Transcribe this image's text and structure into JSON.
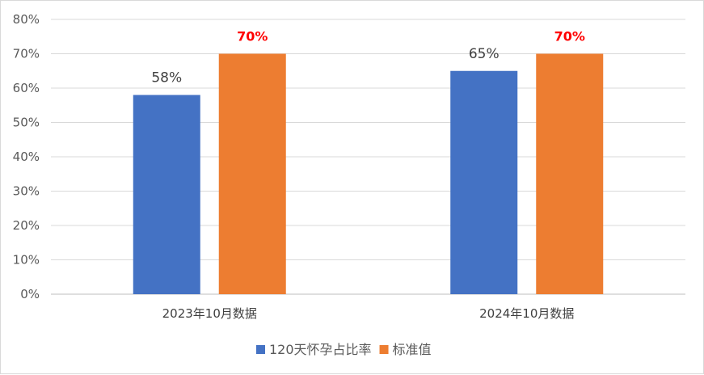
{
  "chart_data": {
    "type": "bar",
    "categories": [
      "2023年10月数据",
      "2024年10月数据"
    ],
    "series": [
      {
        "name": "120天怀孕占比率",
        "values": [
          58,
          65
        ],
        "labels": [
          "58%",
          "65%"
        ],
        "color": "#4472c4",
        "label_color": "#404040",
        "label_bold": false
      },
      {
        "name": "标准值",
        "values": [
          70,
          70
        ],
        "labels": [
          "70%",
          "70%"
        ],
        "color": "#ed7d31",
        "label_color": "#ff0000",
        "label_bold": true
      }
    ],
    "y_ticks": [
      "0%",
      "10%",
      "20%",
      "30%",
      "40%",
      "50%",
      "60%",
      "70%",
      "80%"
    ],
    "ylim": [
      0,
      80
    ],
    "y_unit": "%",
    "grid": true,
    "legend_position": "bottom",
    "title": "",
    "xlabel": "",
    "ylabel": ""
  }
}
